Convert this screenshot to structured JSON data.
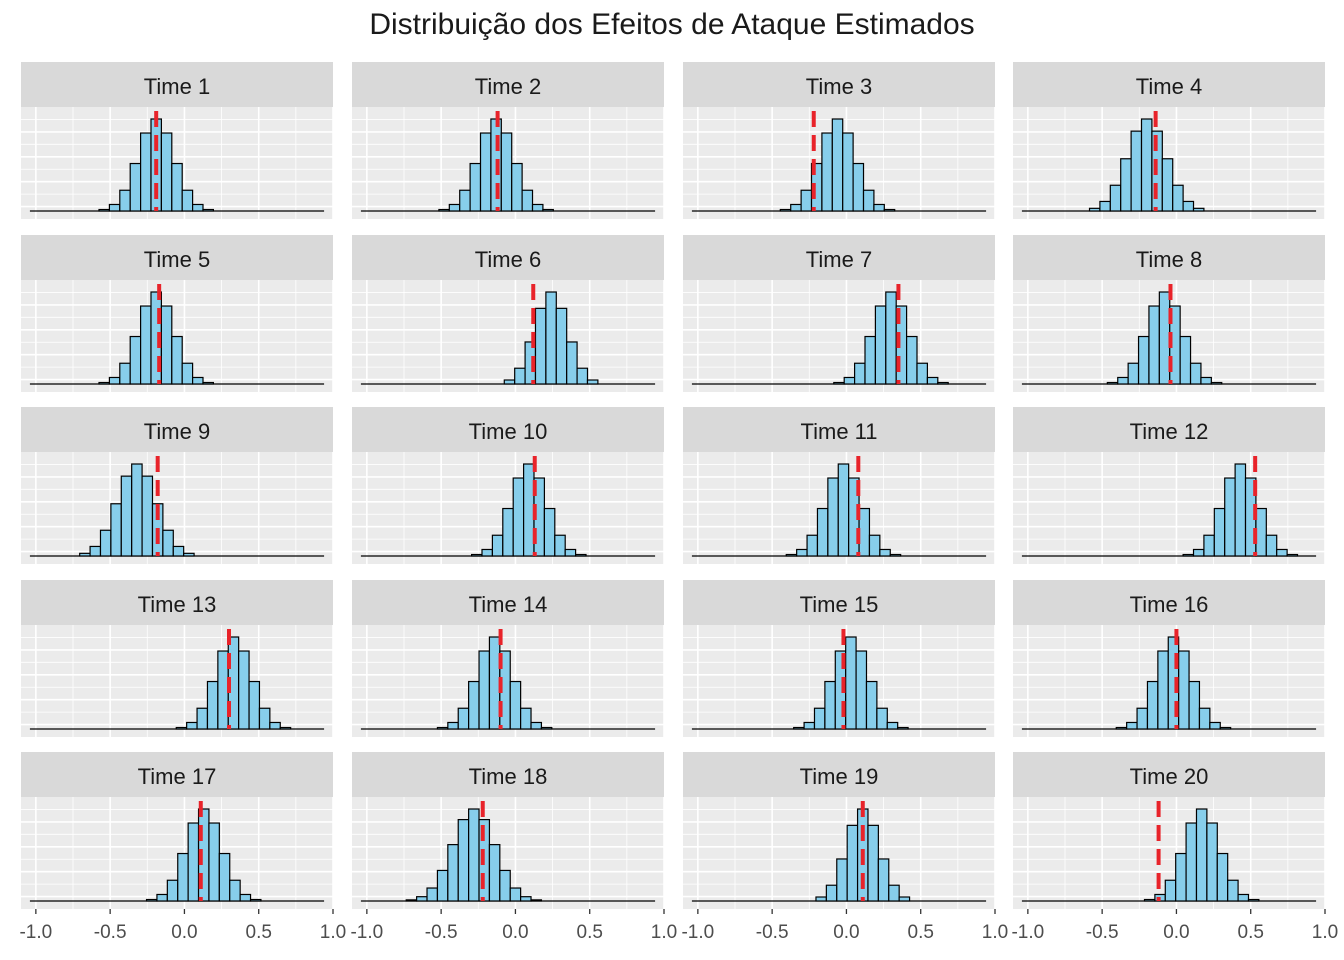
{
  "chart_data": {
    "type": "histogram-facets",
    "title": "Distribuição dos Efeitos de Ataque Estimados",
    "xlim": [
      -1.1,
      1.0
    ],
    "x_ticks": [
      "-1.0",
      "-0.5",
      "0.0",
      "0.5",
      "1.0"
    ],
    "x_tick_values": [
      -1.0,
      -0.5,
      0.0,
      0.5,
      1.0
    ],
    "bin_width": 0.07,
    "grid": true,
    "fill_color": "#87CEEB",
    "bar_stroke": "#000000",
    "ref_line_color": "#E8232A",
    "panel_bg": "#EBEBEB",
    "strip_bg": "#D9D9D9",
    "facets": [
      {
        "label": "Time 1",
        "center": -0.19,
        "sd": 0.12,
        "ref": -0.19
      },
      {
        "label": "Time 2",
        "center": -0.13,
        "sd": 0.12,
        "ref": -0.12
      },
      {
        "label": "Time 3",
        "center": -0.06,
        "sd": 0.12,
        "ref": -0.22
      },
      {
        "label": "Time 4",
        "center": -0.2,
        "sd": 0.13,
        "ref": -0.14
      },
      {
        "label": "Time 5",
        "center": -0.19,
        "sd": 0.12,
        "ref": -0.17
      },
      {
        "label": "Time 6",
        "center": 0.24,
        "sd": 0.11,
        "ref": 0.12
      },
      {
        "label": "Time 7",
        "center": 0.3,
        "sd": 0.12,
        "ref": 0.35
      },
      {
        "label": "Time 8",
        "center": -0.08,
        "sd": 0.12,
        "ref": -0.04
      },
      {
        "label": "Time 9",
        "center": -0.32,
        "sd": 0.13,
        "ref": -0.18
      },
      {
        "label": "Time 10",
        "center": 0.09,
        "sd": 0.12,
        "ref": 0.13
      },
      {
        "label": "Time 11",
        "center": -0.02,
        "sd": 0.12,
        "ref": 0.08
      },
      {
        "label": "Time 12",
        "center": 0.43,
        "sd": 0.12,
        "ref": 0.53
      },
      {
        "label": "Time 13",
        "center": 0.33,
        "sd": 0.12,
        "ref": 0.3
      },
      {
        "label": "Time 14",
        "center": -0.14,
        "sd": 0.12,
        "ref": -0.1
      },
      {
        "label": "Time 15",
        "center": 0.03,
        "sd": 0.12,
        "ref": -0.02
      },
      {
        "label": "Time 16",
        "center": -0.02,
        "sd": 0.12,
        "ref": 0.0
      },
      {
        "label": "Time 17",
        "center": 0.13,
        "sd": 0.12,
        "ref": 0.11
      },
      {
        "label": "Time 18",
        "center": -0.28,
        "sd": 0.14,
        "ref": -0.22
      },
      {
        "label": "Time 19",
        "center": 0.11,
        "sd": 0.11,
        "ref": 0.11
      },
      {
        "label": "Time 20",
        "center": 0.17,
        "sd": 0.12,
        "ref": -0.12
      }
    ]
  }
}
